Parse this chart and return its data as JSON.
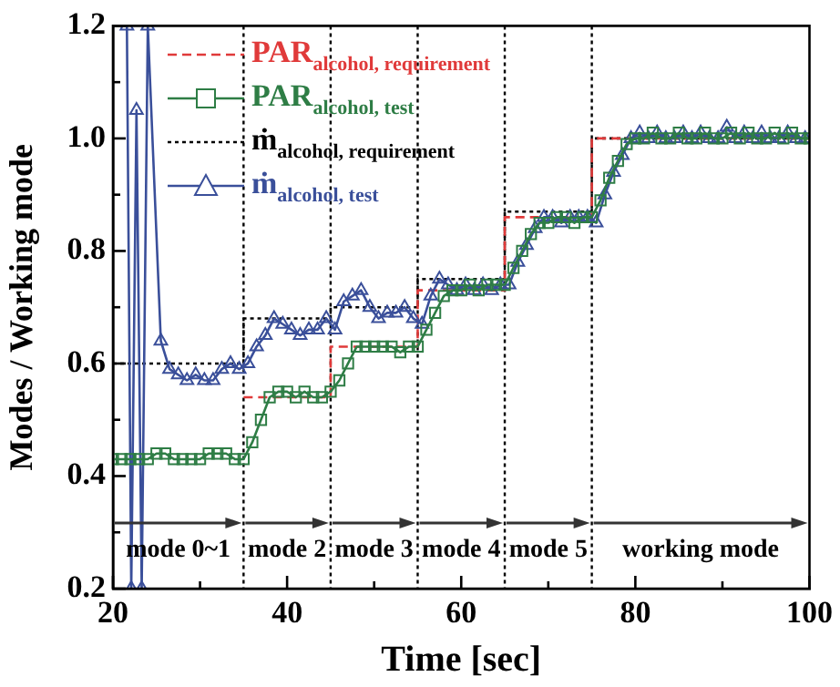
{
  "chart_data": {
    "type": "line",
    "xlabel": "Time [sec]",
    "ylabel": "Modes / Working mode",
    "xlim": [
      20,
      100
    ],
    "ylim": [
      0.2,
      1.2
    ],
    "xticks": [
      20,
      {
        "value": 30,
        "label": null
      },
      40,
      {
        "value": 50,
        "label": null
      },
      60,
      {
        "value": 70,
        "label": null
      },
      80,
      {
        "value": 90,
        "label": null
      },
      100
    ],
    "yticks": [
      0.2,
      {
        "value": 0.3,
        "label": null
      },
      0.4,
      {
        "value": 0.5,
        "label": null
      },
      0.6,
      {
        "value": 0.7,
        "label": null
      },
      0.8,
      {
        "value": 0.9,
        "label": null
      },
      {
        "value": 1,
        "label": "1.0"
      },
      {
        "value": 1.1,
        "label": null
      },
      1.2
    ],
    "grid": false,
    "legend": "top left",
    "series": [
      {
        "name": "PAR$_{alcohol, requirement}$",
        "type": "step",
        "color": "#e03a3a",
        "line_style": "dashed",
        "marker": "none",
        "x": [
          35,
          45,
          55,
          65,
          75,
          100
        ],
        "values": [
          0.54,
          0.63,
          0.73,
          0.86,
          1.0,
          1.0
        ]
      },
      {
        "name": "PAR$_{alcohol, test}$",
        "type": "line",
        "color": "#2e7d45",
        "line_style": "solid",
        "marker": "square",
        "x": [
          20,
          21,
          22,
          23,
          24,
          25,
          26,
          27,
          28,
          29,
          30,
          31,
          32,
          33,
          34,
          35,
          36,
          37,
          38,
          39,
          40,
          41,
          42,
          43,
          44,
          45,
          46,
          47,
          48,
          49,
          50,
          51,
          52,
          53,
          54,
          55,
          56,
          57,
          58,
          59,
          60,
          61,
          62,
          63,
          64,
          65,
          66,
          67,
          68,
          69,
          70,
          71,
          72,
          73,
          74,
          75,
          76,
          77,
          78,
          79,
          80,
          81,
          82,
          83,
          84,
          85,
          86,
          87,
          88,
          89,
          90,
          91,
          92,
          93,
          94,
          95,
          96,
          97,
          98,
          99,
          100
        ],
        "values": [
          0.43,
          0.43,
          0.43,
          0.43,
          0.43,
          0.44,
          0.44,
          0.43,
          0.43,
          0.43,
          0.43,
          0.44,
          0.44,
          0.44,
          0.43,
          0.43,
          0.46,
          0.5,
          0.54,
          0.55,
          0.55,
          0.54,
          0.55,
          0.54,
          0.54,
          0.55,
          0.57,
          0.6,
          0.63,
          0.63,
          0.63,
          0.63,
          0.63,
          0.62,
          0.63,
          0.63,
          0.66,
          0.69,
          0.72,
          0.73,
          0.73,
          0.74,
          0.73,
          0.74,
          0.74,
          0.74,
          0.77,
          0.8,
          0.83,
          0.85,
          0.85,
          0.86,
          0.86,
          0.85,
          0.86,
          0.86,
          0.89,
          0.93,
          0.96,
          0.99,
          1.0,
          1.0,
          1.01,
          1.0,
          1.0,
          1.01,
          1.0,
          1.0,
          1.01,
          1.0,
          1.0,
          1.01,
          1.0,
          1.01,
          1.0,
          1.0,
          1.01,
          1.0,
          1.01,
          1.0,
          1.0
        ]
      },
      {
        "name": "ṁ$_{alcohol, requirement}$",
        "type": "step",
        "color": "#000000",
        "line_style": "dotted",
        "marker": "none",
        "x": [
          20,
          35,
          45,
          55,
          65,
          75,
          100
        ],
        "values": [
          0.6,
          0.68,
          0.7,
          0.75,
          0.87,
          1.0,
          1.0
        ]
      },
      {
        "name": "ṁ$_{alcohol, test}$",
        "type": "line",
        "color": "#3a4f9a",
        "line_style": "solid",
        "marker": "triangle",
        "x": [
          21.6,
          22.1,
          22.7,
          23.3,
          24,
          25.5,
          26.5,
          27.5,
          28.5,
          29.5,
          30.5,
          31.5,
          32.5,
          33.5,
          34.5,
          35.5,
          36.5,
          37.5,
          38.5,
          39.5,
          40.5,
          41.5,
          42.5,
          43.5,
          44.5,
          45.5,
          46.5,
          47.5,
          48.5,
          49.5,
          50.5,
          51.5,
          52.5,
          53.5,
          54.5,
          55.5,
          56.5,
          57.5,
          58.5,
          59.5,
          60.5,
          61.5,
          62.5,
          63.5,
          64.5,
          65.5,
          66.5,
          67.5,
          68.5,
          69.5,
          70.5,
          71.5,
          72.5,
          73.5,
          74.5,
          75.5,
          76.5,
          77.5,
          78.5,
          79.5,
          80.5,
          81.5,
          82.5,
          83.5,
          84.5,
          85.5,
          86.5,
          87.5,
          88.5,
          89.5,
          90.5,
          91.5,
          92.5,
          93.5,
          94.5,
          95.5,
          96.5,
          97.5,
          98.5,
          99.5
        ],
        "values": [
          1.2,
          0.2,
          1.05,
          0.2,
          1.2,
          0.64,
          0.59,
          0.58,
          0.57,
          0.58,
          0.57,
          0.57,
          0.59,
          0.6,
          0.59,
          0.6,
          0.63,
          0.65,
          0.68,
          0.67,
          0.66,
          0.65,
          0.66,
          0.66,
          0.68,
          0.66,
          0.71,
          0.72,
          0.73,
          0.7,
          0.68,
          0.69,
          0.69,
          0.7,
          0.68,
          0.67,
          0.72,
          0.75,
          0.74,
          0.73,
          0.74,
          0.73,
          0.74,
          0.73,
          0.74,
          0.74,
          0.78,
          0.81,
          0.84,
          0.86,
          0.86,
          0.85,
          0.86,
          0.86,
          0.86,
          0.85,
          0.9,
          0.94,
          0.97,
          1.0,
          1.01,
          1.0,
          1.01,
          1.0,
          1.0,
          1.01,
          1.0,
          1.01,
          1.0,
          1.0,
          1.02,
          1.0,
          1.01,
          1.0,
          1.01,
          1.0,
          1.0,
          1.01,
          1.0,
          1.0
        ]
      }
    ],
    "ref_lines": [
      {
        "axis": "x",
        "value": 35,
        "line_style": "dotted",
        "color": "#000000"
      },
      {
        "axis": "x",
        "value": 45,
        "line_style": "dotted",
        "color": "#000000"
      },
      {
        "axis": "x",
        "value": 55,
        "line_style": "dotted",
        "color": "#000000"
      },
      {
        "axis": "x",
        "value": 65,
        "line_style": "dotted",
        "color": "#000000"
      },
      {
        "axis": "x",
        "value": 75,
        "line_style": "dotted",
        "color": "#000000"
      }
    ],
    "annotations": [
      {
        "text": "mode 0~1",
        "x": 35,
        "y": 0.32
      },
      {
        "text": "mode 2",
        "x": 45,
        "y": 0.32
      },
      {
        "text": "mode 3",
        "x": 55,
        "y": 0.32
      },
      {
        "text": "mode 4",
        "x": 65,
        "y": 0.32
      },
      {
        "text": "mode 5",
        "x": 75,
        "y": 0.32
      },
      "working mode"
    ]
  }
}
